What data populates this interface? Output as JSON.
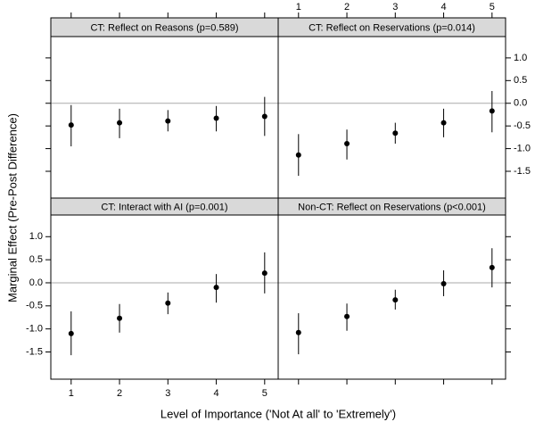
{
  "chart_data": {
    "type": "errorbar",
    "xlabel": "Level of Importance ('Not At all' to 'Extremely')",
    "ylabel": "Marginal Effect (Pre-Post Difference)",
    "x": [
      1,
      2,
      3,
      4,
      5
    ],
    "xlim": [
      0.58,
      5.28
    ],
    "xticks": [
      1,
      2,
      3,
      4,
      5
    ],
    "ylim": [
      -2.09,
      1.47
    ],
    "yticks": [
      -1.5,
      {
        "value": -1,
        "label": "-1.0"
      },
      -0.5,
      {
        "value": 0,
        "label": "0.0"
      },
      0.5,
      {
        "value": 1,
        "label": "1.0"
      }
    ],
    "reference_line": 0,
    "point_color": "#000000",
    "strip_color": "#d9d9d9",
    "panels": [
      {
        "title": "CT: Reflect on Reasons (p=0.589)",
        "values": [
          -0.48,
          -0.43,
          -0.39,
          -0.33,
          -0.29
        ],
        "lower": [
          -0.95,
          -0.77,
          -0.62,
          -0.62,
          -0.72
        ],
        "upper": [
          -0.04,
          -0.12,
          -0.15,
          -0.06,
          0.14
        ]
      },
      {
        "title": "CT: Reflect on Reservations (p=0.014)",
        "values": [
          -1.14,
          -0.89,
          -0.66,
          -0.43,
          -0.17
        ],
        "lower": [
          -1.6,
          -1.24,
          -0.89,
          -0.75,
          -0.64
        ],
        "upper": [
          -0.68,
          -0.58,
          -0.43,
          -0.12,
          0.27
        ]
      },
      {
        "title": "CT: Interact with AI (p=0.001)",
        "values": [
          -1.1,
          -0.77,
          -0.44,
          -0.1,
          0.21
        ],
        "lower": [
          -1.57,
          -1.08,
          -0.68,
          -0.43,
          -0.23
        ],
        "upper": [
          -0.62,
          -0.46,
          -0.21,
          0.19,
          0.66
        ]
      },
      {
        "title": "Non-CT: Reflect on Reservations (p<0.001)",
        "values": [
          -1.08,
          -0.73,
          -0.37,
          -0.02,
          0.33
        ],
        "lower": [
          -1.55,
          -1.04,
          -0.58,
          -0.29,
          -0.1
        ],
        "upper": [
          -0.66,
          -0.45,
          -0.15,
          0.27,
          0.75
        ]
      }
    ]
  }
}
